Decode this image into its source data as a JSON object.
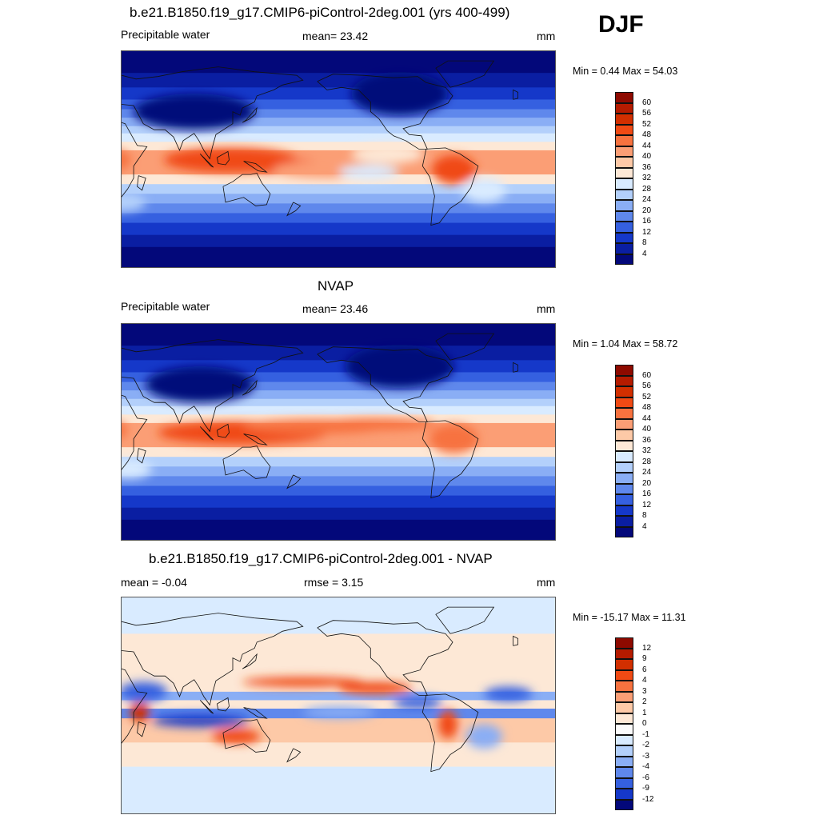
{
  "season": "DJF",
  "panels": [
    {
      "id": "model",
      "title": "b.e21.B1850.f19_g17.CMIP6-piControl-2deg.001 (yrs 400-499)",
      "left_label": "Precipitable water",
      "center_label": "mean=  23.42",
      "units": "mm",
      "minmax": "Min =   0.44 Max =  54.03"
    },
    {
      "id": "obs",
      "title": "NVAP",
      "left_label": "Precipitable water",
      "center_label": "mean=  23.46",
      "units": "mm",
      "minmax": "Min =   1.04 Max =  58.72"
    },
    {
      "id": "diff",
      "title": "b.e21.B1850.f19_g17.CMIP6-piControl-2deg.001 - NVAP",
      "left_label": "mean =  -0.04",
      "center_label": "rmse =   3.15",
      "units": "mm",
      "minmax": "Min = -15.17 Max =  11.31"
    }
  ],
  "colorbars": {
    "absolute": {
      "ticks": [
        "60",
        "56",
        "52",
        "48",
        "44",
        "40",
        "36",
        "32",
        "28",
        "24",
        "20",
        "16",
        "12",
        "8",
        "4"
      ],
      "colors": [
        "#8e0a00",
        "#b51b00",
        "#d22f00",
        "#f04a14",
        "#f7723f",
        "#fb9e75",
        "#fdc9a7",
        "#fde8d6",
        "#d9ebff",
        "#b3d0fb",
        "#8aaef5",
        "#5f88ec",
        "#3560e0",
        "#1538c9",
        "#0a1ea2",
        "#03087a"
      ]
    },
    "difference": {
      "ticks": [
        "12",
        "9",
        "6",
        "4",
        "3",
        "2",
        "1",
        "0",
        "-1",
        "-2",
        "-3",
        "-4",
        "-6",
        "-9",
        "-12"
      ],
      "colors": [
        "#8e0a00",
        "#b51b00",
        "#d22f00",
        "#f04a14",
        "#f7723f",
        "#fb9e75",
        "#fdc9a7",
        "#fde8d6",
        "#fbfbfb",
        "#d9ebff",
        "#b3d0fb",
        "#8aaef5",
        "#5f88ec",
        "#3560e0",
        "#1538c9",
        "#03087a"
      ]
    }
  },
  "chart_data": [
    {
      "type": "heatmap",
      "title": "b.e21.B1850.f19_g17.CMIP6-piControl-2deg.001 (yrs 400-499)",
      "variable": "Precipitable water",
      "units": "mm",
      "mean": 23.42,
      "min": 0.44,
      "max": 54.03,
      "levels": [
        4,
        8,
        12,
        16,
        20,
        24,
        28,
        32,
        36,
        40,
        44,
        48,
        52,
        56,
        60
      ]
    },
    {
      "type": "heatmap",
      "title": "NVAP",
      "variable": "Precipitable water",
      "units": "mm",
      "mean": 23.46,
      "min": 1.04,
      "max": 58.72,
      "levels": [
        4,
        8,
        12,
        16,
        20,
        24,
        28,
        32,
        36,
        40,
        44,
        48,
        52,
        56,
        60
      ]
    },
    {
      "type": "heatmap",
      "title": "b.e21.B1850.f19_g17.CMIP6-piControl-2deg.001 - NVAP",
      "units": "mm",
      "mean": -0.04,
      "rmse": 3.15,
      "min": -15.17,
      "max": 11.31,
      "levels": [
        -12,
        -9,
        -6,
        -4,
        -3,
        -2,
        -1,
        0,
        1,
        2,
        3,
        4,
        6,
        9,
        12
      ]
    }
  ]
}
